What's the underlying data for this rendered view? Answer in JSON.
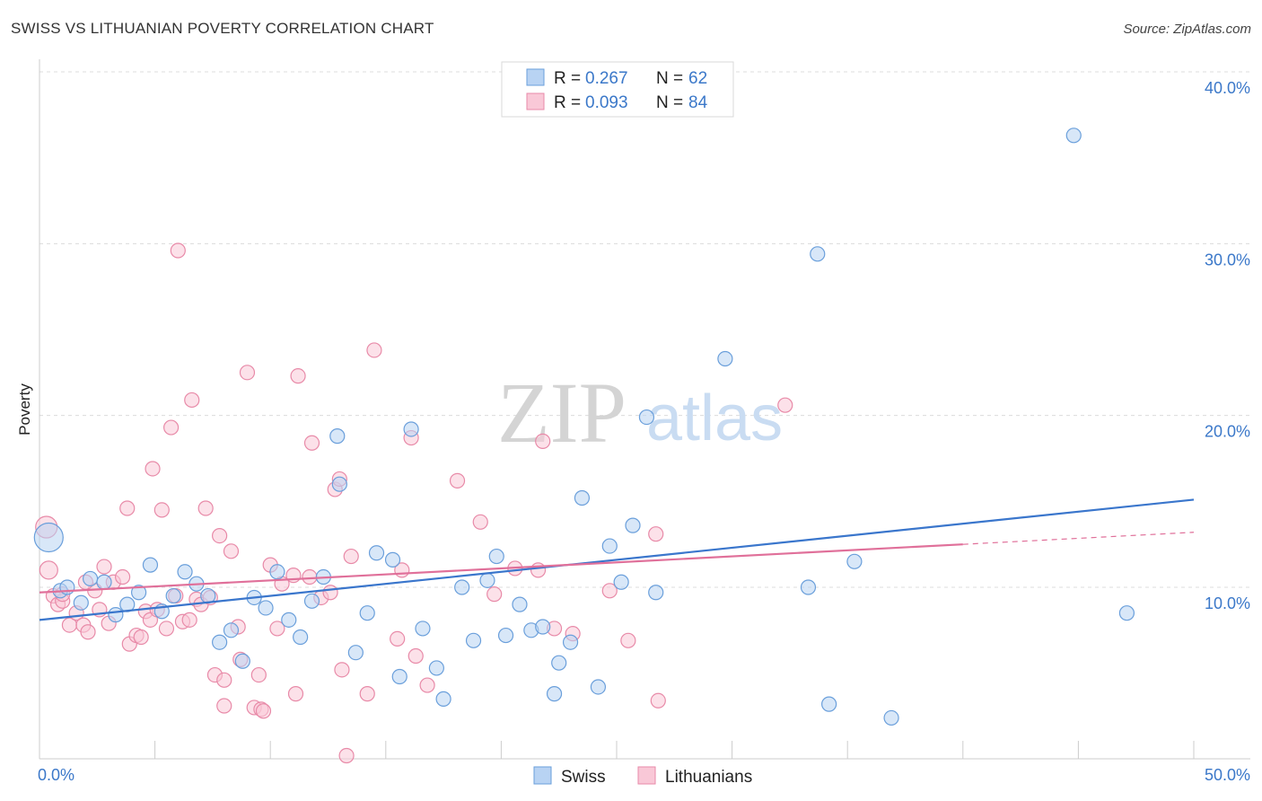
{
  "header": {
    "title": "SWISS VS LITHUANIAN POVERTY CORRELATION CHART",
    "source": "Source: ZipAtlas.com"
  },
  "watermark": {
    "zip": "ZIP",
    "atlas": "atlas"
  },
  "stats_box": {
    "rows": [
      {
        "r_label": "R =",
        "r_value": "0.267",
        "n_label": "N =",
        "n_value": "62",
        "color": "#b8d3f3",
        "stroke": "#6a9fdb"
      },
      {
        "r_label": "R =",
        "r_value": "0.093",
        "n_label": "N =",
        "n_value": "84",
        "color": "#f9c8d7",
        "stroke": "#e88aa8"
      }
    ]
  },
  "legend": {
    "items": [
      {
        "label": "Swiss",
        "color": "#b8d3f3",
        "stroke": "#6a9fdb"
      },
      {
        "label": "Lithuanians",
        "color": "#f9c8d7",
        "stroke": "#e88aa8"
      }
    ]
  },
  "chart_data": {
    "type": "scatter",
    "title": "SWISS VS LITHUANIAN POVERTY CORRELATION CHART",
    "ylabel": "Poverty",
    "xlabel": "",
    "xlim": [
      0,
      50
    ],
    "ylim": [
      0,
      42
    ],
    "x_tick_labels": [
      "0.0%",
      "50.0%"
    ],
    "y_ticks": [
      10,
      20,
      30,
      40
    ],
    "y_tick_labels": [
      "10.0%",
      "20.0%",
      "30.0%",
      "40.0%"
    ],
    "grid": "horizontal dashed",
    "colors": {
      "swiss": "#3a76cc",
      "lithuanians": "#e0709a"
    },
    "series": [
      {
        "name": "Swiss",
        "marker_fill": "#b8d3f3",
        "marker_stroke": "#6a9fdb",
        "trend": {
          "x": [
            0,
            50
          ],
          "y": [
            8.1,
            15.1
          ],
          "dashed_from": null
        },
        "points": [
          [
            0.4,
            12.9,
            16
          ],
          [
            0.9,
            9.8,
            8
          ],
          [
            1.2,
            10.0,
            8
          ],
          [
            1.8,
            9.1,
            8
          ],
          [
            2.2,
            10.5,
            8
          ],
          [
            2.8,
            10.3,
            8
          ],
          [
            3.3,
            8.4,
            8
          ],
          [
            3.8,
            9.0,
            8
          ],
          [
            4.3,
            9.7,
            8
          ],
          [
            4.8,
            11.3,
            8
          ],
          [
            5.3,
            8.6,
            8
          ],
          [
            5.8,
            9.5,
            8
          ],
          [
            6.3,
            10.9,
            8
          ],
          [
            6.8,
            10.2,
            8
          ],
          [
            7.3,
            9.5,
            8
          ],
          [
            7.8,
            6.8,
            8
          ],
          [
            8.3,
            7.5,
            8
          ],
          [
            8.8,
            5.7,
            8
          ],
          [
            9.3,
            9.4,
            8
          ],
          [
            9.8,
            8.8,
            8
          ],
          [
            10.3,
            10.9,
            8
          ],
          [
            10.8,
            8.1,
            8
          ],
          [
            11.3,
            7.1,
            8
          ],
          [
            11.8,
            9.2,
            8
          ],
          [
            12.3,
            10.6,
            8
          ],
          [
            12.9,
            18.8,
            8
          ],
          [
            13.0,
            16.0,
            8
          ],
          [
            13.7,
            6.2,
            8
          ],
          [
            14.2,
            8.5,
            8
          ],
          [
            14.6,
            12.0,
            8
          ],
          [
            15.3,
            11.6,
            8
          ],
          [
            15.6,
            4.8,
            8
          ],
          [
            16.1,
            19.2,
            8
          ],
          [
            16.6,
            7.6,
            8
          ],
          [
            17.2,
            5.3,
            8
          ],
          [
            17.5,
            3.5,
            8
          ],
          [
            18.3,
            10.0,
            8
          ],
          [
            18.8,
            6.9,
            8
          ],
          [
            19.4,
            10.4,
            8
          ],
          [
            19.8,
            11.8,
            8
          ],
          [
            20.2,
            7.2,
            8
          ],
          [
            20.8,
            9.0,
            8
          ],
          [
            21.3,
            7.5,
            8
          ],
          [
            21.8,
            7.7,
            8
          ],
          [
            22.3,
            3.8,
            8
          ],
          [
            22.5,
            5.6,
            8
          ],
          [
            23.0,
            6.8,
            8
          ],
          [
            23.5,
            15.2,
            8
          ],
          [
            24.2,
            4.2,
            8
          ],
          [
            24.7,
            12.4,
            8
          ],
          [
            25.2,
            10.3,
            8
          ],
          [
            25.7,
            13.6,
            8
          ],
          [
            26.3,
            19.9,
            8
          ],
          [
            26.7,
            9.7,
            8
          ],
          [
            29.7,
            23.3,
            8
          ],
          [
            33.3,
            10.0,
            8
          ],
          [
            33.7,
            29.4,
            8
          ],
          [
            34.2,
            3.2,
            8
          ],
          [
            35.3,
            11.5,
            8
          ],
          [
            36.9,
            2.4,
            8
          ],
          [
            44.8,
            36.3,
            8
          ],
          [
            47.1,
            8.5,
            8
          ]
        ]
      },
      {
        "name": "Lithuanians",
        "marker_fill": "#f9c8d7",
        "marker_stroke": "#e88aa8",
        "trend": {
          "x": [
            0,
            50
          ],
          "y": [
            9.7,
            13.2
          ],
          "dashed_from": 40
        },
        "points": [
          [
            0.3,
            13.5,
            12
          ],
          [
            0.4,
            11.0,
            10
          ],
          [
            0.6,
            9.5,
            8
          ],
          [
            0.8,
            9.0,
            8
          ],
          [
            1.0,
            9.2,
            8
          ],
          [
            1.3,
            7.8,
            8
          ],
          [
            1.6,
            8.5,
            8
          ],
          [
            1.9,
            7.8,
            8
          ],
          [
            2.1,
            7.4,
            8
          ],
          [
            2.4,
            9.8,
            8
          ],
          [
            2.6,
            8.7,
            8
          ],
          [
            2.8,
            11.2,
            8
          ],
          [
            3.0,
            7.9,
            8
          ],
          [
            3.2,
            10.3,
            8
          ],
          [
            3.6,
            10.6,
            8
          ],
          [
            3.8,
            14.6,
            8
          ],
          [
            3.9,
            6.7,
            8
          ],
          [
            4.2,
            7.2,
            8
          ],
          [
            4.4,
            7.1,
            8
          ],
          [
            4.6,
            8.6,
            8
          ],
          [
            4.8,
            8.1,
            8
          ],
          [
            4.9,
            16.9,
            8
          ],
          [
            5.1,
            8.7,
            8
          ],
          [
            5.3,
            14.5,
            8
          ],
          [
            5.5,
            7.6,
            8
          ],
          [
            5.7,
            19.3,
            8
          ],
          [
            5.9,
            9.5,
            8
          ],
          [
            6.0,
            29.6,
            8
          ],
          [
            6.2,
            8.0,
            8
          ],
          [
            6.5,
            8.1,
            8
          ],
          [
            6.6,
            20.9,
            8
          ],
          [
            6.8,
            9.3,
            8
          ],
          [
            7.0,
            9.0,
            8
          ],
          [
            7.2,
            14.6,
            8
          ],
          [
            7.4,
            9.4,
            8
          ],
          [
            7.6,
            4.9,
            8
          ],
          [
            7.8,
            13.0,
            8
          ],
          [
            8.0,
            4.6,
            8
          ],
          [
            8.0,
            3.1,
            8
          ],
          [
            8.3,
            12.1,
            8
          ],
          [
            8.6,
            7.7,
            8
          ],
          [
            8.7,
            5.8,
            8
          ],
          [
            9.0,
            22.5,
            8
          ],
          [
            9.3,
            3.0,
            8
          ],
          [
            9.5,
            4.9,
            8
          ],
          [
            9.6,
            2.9,
            8
          ],
          [
            9.7,
            2.8,
            8
          ],
          [
            10.0,
            11.3,
            8
          ],
          [
            10.3,
            7.6,
            8
          ],
          [
            10.5,
            10.2,
            8
          ],
          [
            11.0,
            10.7,
            8
          ],
          [
            11.1,
            3.8,
            8
          ],
          [
            11.2,
            22.3,
            8
          ],
          [
            11.7,
            10.6,
            8
          ],
          [
            11.8,
            18.4,
            8
          ],
          [
            12.2,
            9.4,
            8
          ],
          [
            12.6,
            9.7,
            8
          ],
          [
            12.8,
            15.7,
            8
          ],
          [
            13.0,
            16.3,
            8
          ],
          [
            13.1,
            5.2,
            8
          ],
          [
            13.3,
            0.2,
            8
          ],
          [
            13.5,
            11.8,
            8
          ],
          [
            14.2,
            3.8,
            8
          ],
          [
            14.5,
            23.8,
            8
          ],
          [
            15.5,
            7.0,
            8
          ],
          [
            15.7,
            11.0,
            8
          ],
          [
            16.1,
            18.7,
            8
          ],
          [
            16.3,
            6.0,
            8
          ],
          [
            16.8,
            4.3,
            8
          ],
          [
            18.1,
            16.2,
            8
          ],
          [
            19.1,
            13.8,
            8
          ],
          [
            19.7,
            9.6,
            8
          ],
          [
            20.6,
            11.1,
            8
          ],
          [
            21.6,
            11.0,
            8
          ],
          [
            21.8,
            18.5,
            8
          ],
          [
            22.3,
            7.6,
            8
          ],
          [
            23.1,
            7.3,
            8
          ],
          [
            24.7,
            9.8,
            8
          ],
          [
            25.5,
            6.9,
            8
          ],
          [
            26.7,
            13.1,
            8
          ],
          [
            26.8,
            3.4,
            8
          ],
          [
            32.3,
            20.6,
            8
          ],
          [
            1.0,
            9.6,
            8
          ],
          [
            2.0,
            10.3,
            8
          ]
        ]
      }
    ]
  }
}
